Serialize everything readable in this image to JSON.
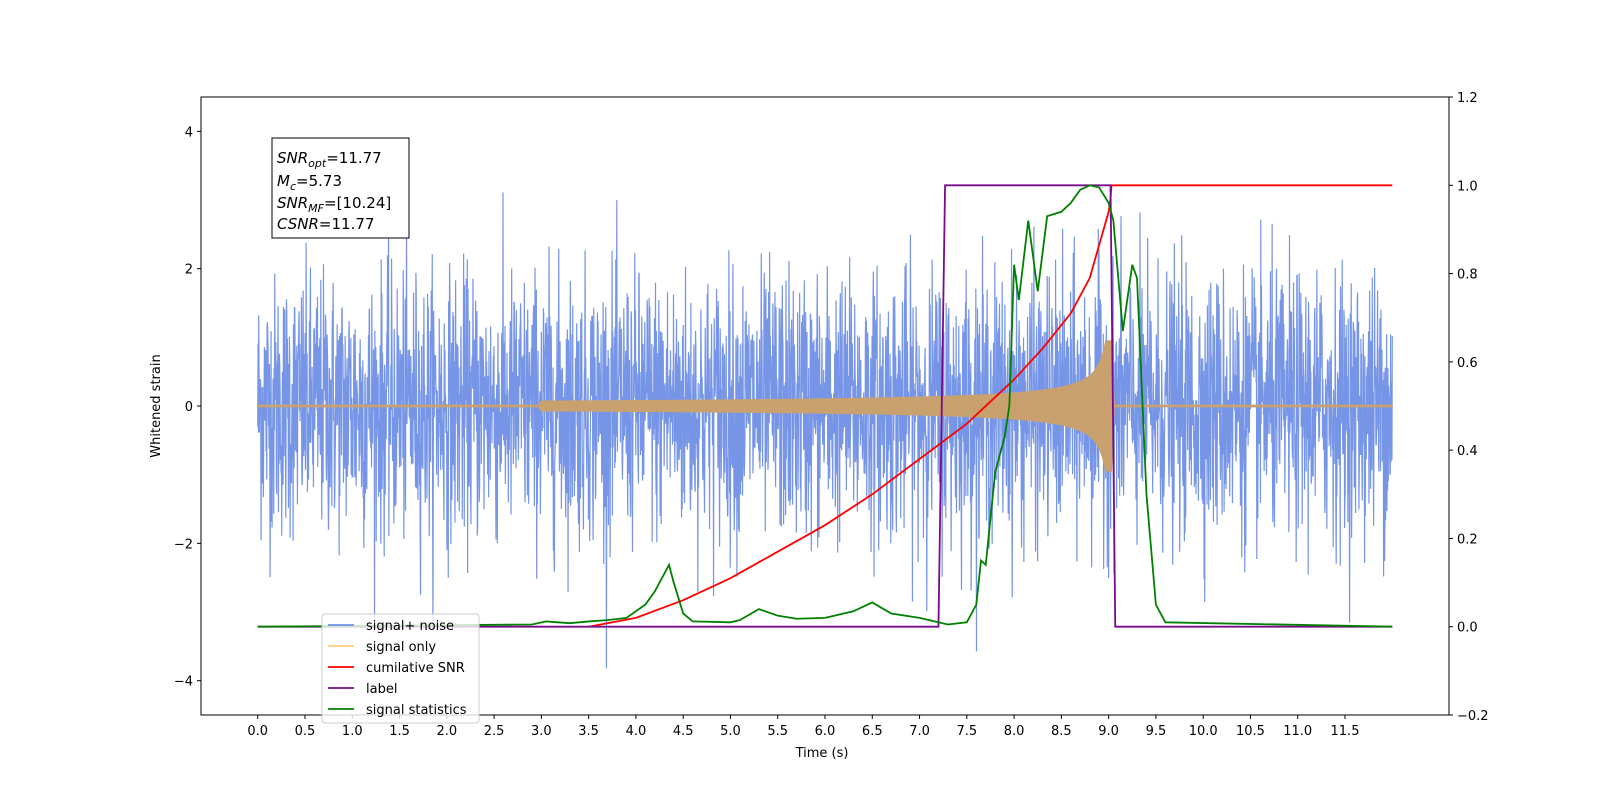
{
  "chart_data": {
    "type": "line",
    "xlabel": "Time (s)",
    "ylabel": "Whitened strain",
    "xlim": [
      -0.6,
      12.6
    ],
    "ylim": [
      -4.5,
      4.5
    ],
    "y2lim": [
      -0.2,
      1.2
    ],
    "x_ticks": [
      "0.0",
      "0.5",
      "1.0",
      "1.5",
      "2.0",
      "2.5",
      "3.0",
      "3.5",
      "4.0",
      "4.5",
      "5.0",
      "5.5",
      "6.0",
      "6.5",
      "7.0",
      "7.5",
      "8.0",
      "8.5",
      "9.0",
      "9.5",
      "10.0",
      "10.5",
      "11.0",
      "11.5"
    ],
    "y_ticks": [
      "−4",
      "−2",
      "0",
      "2",
      "4"
    ],
    "y2_ticks": [
      "−0.2",
      "0.0",
      "0.2",
      "0.4",
      "0.6",
      "0.8",
      "1.0",
      "1.2"
    ],
    "annotation": {
      "snr_opt": {
        "label": "SNR",
        "sub": "opt",
        "value": "=11.77"
      },
      "mc": {
        "label": "M",
        "sub": "c",
        "value": "=5.73"
      },
      "snr_mf": {
        "label": "SNR",
        "sub": "MF",
        "value": "=[10.24]"
      },
      "csnr": {
        "label": "CSNR",
        "sub": "",
        "value": "=11.77"
      }
    },
    "series": [
      {
        "name": "signal+ noise",
        "color": "#6f8fe6",
        "axis": "left",
        "kind": "noise",
        "x_range": [
          0.0,
          12.0
        ],
        "std": 0.95
      },
      {
        "name": "signal only",
        "color": "#c9a16f",
        "axis": "left",
        "kind": "chirp",
        "peak_time": 9.02,
        "peak_amplitude": 0.95
      },
      {
        "name": "cumilative SNR",
        "color": "#ff0000",
        "axis": "right",
        "x": [
          3.5,
          4.0,
          4.5,
          5.0,
          5.5,
          6.0,
          6.5,
          7.0,
          7.5,
          8.0,
          8.3,
          8.6,
          8.8,
          9.0,
          9.02,
          9.03,
          12.0
        ],
        "y": [
          0.0,
          0.02,
          0.06,
          0.11,
          0.17,
          0.23,
          0.3,
          0.38,
          0.46,
          0.56,
          0.63,
          0.71,
          0.79,
          0.94,
          0.97,
          1.0,
          1.0
        ]
      },
      {
        "name": "label",
        "color": "#7a0a8c",
        "axis": "right",
        "x": [
          0.0,
          7.2,
          7.27,
          9.02,
          9.07,
          12.0
        ],
        "y": [
          0.0,
          0.0,
          1.0,
          1.0,
          0.0,
          0.0
        ]
      },
      {
        "name": "signal statistics",
        "color": "#008000",
        "axis": "right",
        "x": [
          0.0,
          2.9,
          3.05,
          3.3,
          3.5,
          3.7,
          3.9,
          4.1,
          4.2,
          4.3,
          4.35,
          4.4,
          4.5,
          4.6,
          5.0,
          5.1,
          5.3,
          5.5,
          5.7,
          6.0,
          6.3,
          6.5,
          6.7,
          7.0,
          7.3,
          7.5,
          7.6,
          7.65,
          7.7,
          7.8,
          7.9,
          7.95,
          8.0,
          8.05,
          8.15,
          8.25,
          8.35,
          8.5,
          8.6,
          8.7,
          8.8,
          8.9,
          9.0,
          9.05,
          9.15,
          9.25,
          9.3,
          9.4,
          9.5,
          9.6,
          12.0
        ],
        "y": [
          0.0,
          0.005,
          0.012,
          0.008,
          0.012,
          0.015,
          0.02,
          0.05,
          0.08,
          0.12,
          0.14,
          0.1,
          0.03,
          0.012,
          0.01,
          0.015,
          0.04,
          0.025,
          0.018,
          0.02,
          0.035,
          0.055,
          0.03,
          0.02,
          0.005,
          0.01,
          0.05,
          0.15,
          0.14,
          0.35,
          0.43,
          0.5,
          0.82,
          0.74,
          0.92,
          0.76,
          0.93,
          0.94,
          0.96,
          0.99,
          1.0,
          0.995,
          0.96,
          0.92,
          0.67,
          0.82,
          0.79,
          0.3,
          0.05,
          0.01,
          0.0
        ]
      }
    ],
    "legend_position": "lower-left",
    "grid": false
  }
}
